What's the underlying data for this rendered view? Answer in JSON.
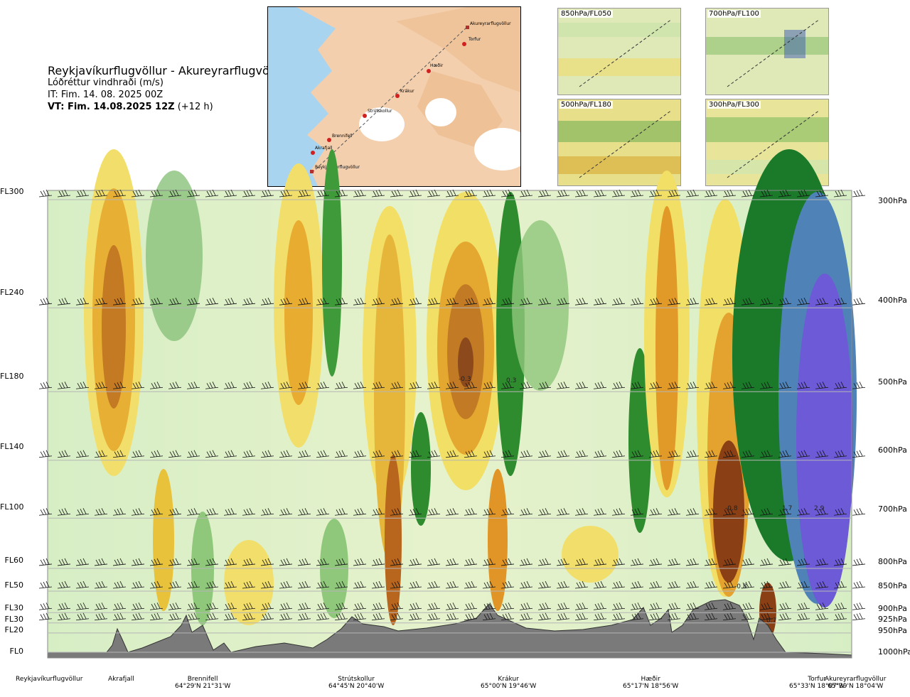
{
  "header": {
    "title": "Reykjavíkurflugvöllur - Akureyrarflugvöllur",
    "subtitle": "Lóðréttur vindhraði (m/s)",
    "it_line": "IT: Fim. 14. 08. 2025 00Z",
    "vt_bold": "VT: Fim. 14.08.2025 12Z",
    "vt_extra": "(+12 h)"
  },
  "map": {
    "points": [
      "Akureyrarflugvöllur",
      "Torfur",
      "Hæðir",
      "Krákur",
      "Strútskollur",
      "Brennifell",
      "Akrafjall",
      "Reykjavíkurflugvöllur"
    ]
  },
  "thumbnails": [
    {
      "label": "850hPa/FL050"
    },
    {
      "label": "700hPa/FL100"
    },
    {
      "label": "500hPa/FL180"
    },
    {
      "label": "300hPa/FL300"
    }
  ],
  "chart_data": {
    "type": "heatmap",
    "title": "Lóðréttur vindhraði (m/s)",
    "left_axis_labels": [
      "FL300",
      "FL240",
      "FL180",
      "FL140",
      "FL100",
      "FL60",
      "FL50",
      "FL30",
      "FL30",
      "FL20",
      "FL0"
    ],
    "right_axis_labels": [
      "300hPa",
      "400hPa",
      "500hPa",
      "600hPa",
      "700hPa",
      "800hPa",
      "850hPa",
      "900hPa",
      "925hPa",
      "950hPa",
      "1000hPa"
    ],
    "pressure_levels_hpa": [
      300,
      400,
      500,
      600,
      700,
      800,
      850,
      900,
      925,
      950,
      1000
    ],
    "locations": [
      {
        "name": "Reykjavíkurflugvöllur",
        "coord": "",
        "x": 0.0
      },
      {
        "name": "Akrafjall",
        "coord": "",
        "x": 0.09
      },
      {
        "name": "Brennifell",
        "coord": "64°29'N 21°31'W",
        "x": 0.185
      },
      {
        "name": "Strútskollur",
        "coord": "64°45'N 20°40'W",
        "x": 0.375
      },
      {
        "name": "Krákur",
        "coord": "65°00'N 19°46'W",
        "x": 0.56
      },
      {
        "name": "Hæðir",
        "coord": "65°17'N 18°56'W",
        "x": 0.745
      },
      {
        "name": "Torfur",
        "coord": "65°33'N 18°07'W",
        "x": 0.925
      },
      {
        "name": "Akureyrarflugvöllur",
        "coord": "65°39'N 18°04'W",
        "x": 1.0
      }
    ],
    "value_labels": [
      "-0.3",
      "0.3",
      "-0.8",
      "1.7",
      "2.9",
      "-0.8",
      "0.7"
    ]
  }
}
